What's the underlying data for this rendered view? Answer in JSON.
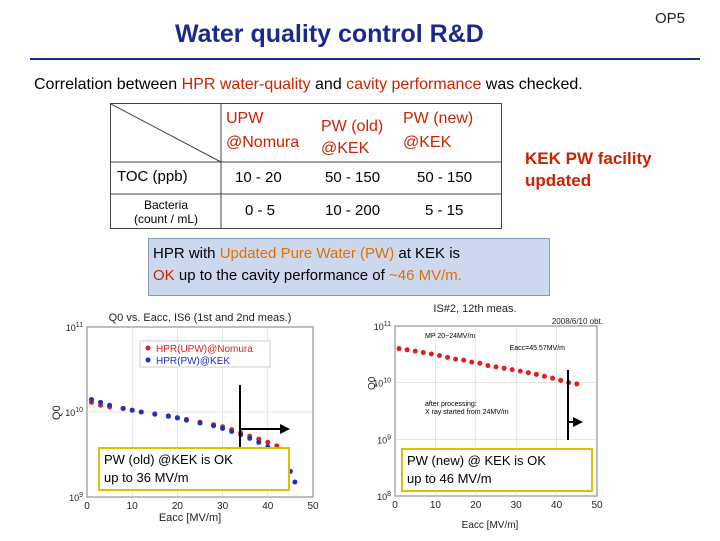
{
  "header": {
    "title": "Water quality control R&D",
    "slide_code": "OP5"
  },
  "subtitle": {
    "pre": "Correlation between ",
    "hl1": "HPR water-quality",
    "mid": " and ",
    "hl2": "cavity performance",
    "post": " was checked."
  },
  "table": {
    "col1": [
      "UPW",
      "@Nomura"
    ],
    "col2": [
      "PW (old)",
      "@KEK"
    ],
    "col3": [
      "PW (new)",
      "@KEK"
    ],
    "row1_label": "TOC (ppb)",
    "row1_vals": [
      "10 - 20",
      "50 - 150",
      "50 - 150"
    ],
    "row2_label": [
      "Bacteria",
      "(count / mL)"
    ],
    "row2_vals": [
      "0 - 5",
      "10 - 200",
      "5 - 15"
    ]
  },
  "facility_note": [
    "KEK PW facility",
    "updated"
  ],
  "banner": {
    "l1a": "HPR with ",
    "l1b": "Updated Pure Water (PW)",
    "l1c": " at KEK is",
    "l2a": "OK",
    "l2b": " up to the cavity performance of ",
    "l2c": "~46 MV/m."
  },
  "left_plot": {
    "title": "Q0 vs. Eacc, IS6 (1st and 2nd meas.)",
    "ylabel": "Q0",
    "xlabel": "Eacc [MV/m]",
    "y_ticks": [
      "10^11",
      "10^10",
      "10^9"
    ],
    "x_ticks": [
      "0",
      "10",
      "20",
      "30",
      "40",
      "50"
    ],
    "legend": [
      "HPR(UPW)@Nomura",
      "HPR(PW)@KEK"
    ],
    "callout": [
      "PW (old) @KEK is OK",
      "up to 36 MV/m"
    ]
  },
  "right_plot": {
    "title": "IS#2, 12th meas.",
    "date": "2008/6/10 obt.",
    "ylabel": "Q0",
    "xlabel": "Eacc [MV/m]",
    "y_ticks": [
      "10^11",
      "10^10",
      "10^9",
      "10^8"
    ],
    "x_ticks": [
      "0",
      "10",
      "20",
      "30",
      "40",
      "50"
    ],
    "notes": [
      "MP 20~24MV/m",
      "Eacc=45.57MV/m",
      "after processing:",
      "X ray started from 24MV/m"
    ],
    "callout": [
      "PW (new) @ KEK is OK",
      "up to 46 MV/m"
    ]
  },
  "colors": {
    "title": "#1a2a8c",
    "highlight": "#cc2200",
    "orange": "#e07000",
    "series_upw": "#e02020",
    "series_pw": "#2030c0"
  },
  "chart_data": [
    {
      "type": "scatter",
      "title": "Q0 vs. Eacc, IS6 (1st and 2nd meas.)",
      "xlabel": "Eacc [MV/m]",
      "ylabel": "Q0",
      "xlim": [
        0,
        50
      ],
      "ylim_log10": [
        9,
        11
      ],
      "series": [
        {
          "name": "HPR(UPW)@Nomura",
          "color": "#e02020",
          "x": [
            1,
            3,
            5,
            8,
            10,
            12,
            15,
            18,
            20,
            22,
            25,
            28,
            30,
            32,
            34,
            36,
            38,
            40,
            42,
            44
          ],
          "y": [
            13000000000.0,
            12000000000.0,
            11500000000.0,
            11000000000.0,
            10500000000.0,
            10000000000.0,
            9500000000.0,
            9000000000.0,
            8600000000.0,
            8200000000.0,
            7600000000.0,
            7100000000.0,
            6700000000.0,
            6200000000.0,
            5700000000.0,
            5200000000.0,
            4800000000.0,
            4400000000.0,
            4000000000.0,
            3600000000.0
          ]
        },
        {
          "name": "HPR(PW)@KEK",
          "color": "#2030c0",
          "x": [
            1,
            3,
            5,
            8,
            10,
            12,
            15,
            18,
            20,
            22,
            25,
            28,
            30,
            32,
            34,
            36,
            38,
            40,
            42,
            44,
            45,
            46
          ],
          "y": [
            14000000000.0,
            13000000000.0,
            12000000000.0,
            11000000000.0,
            10500000000.0,
            10000000000.0,
            9400000000.0,
            8900000000.0,
            8500000000.0,
            8000000000.0,
            7400000000.0,
            6900000000.0,
            6400000000.0,
            5900000000.0,
            5400000000.0,
            4900000000.0,
            4400000000.0,
            3900000000.0,
            3300000000.0,
            2600000000.0,
            2000000000.0,
            1500000000.0
          ]
        }
      ]
    },
    {
      "type": "scatter",
      "title": "IS#2, 12th meas.",
      "xlabel": "Eacc [MV/m]",
      "ylabel": "Q0",
      "xlim": [
        0,
        50
      ],
      "ylim_log10": [
        8,
        11
      ],
      "series": [
        {
          "name": "",
          "color": "#e02020",
          "x": [
            1,
            3,
            5,
            7,
            9,
            11,
            13,
            15,
            17,
            19,
            21,
            23,
            25,
            27,
            29,
            31,
            33,
            35,
            37,
            39,
            41,
            43,
            45
          ],
          "y": [
            40000000000.0,
            38000000000.0,
            36000000000.0,
            34000000000.0,
            32000000000.0,
            30000000000.0,
            28000000000.0,
            26000000000.0,
            25000000000.0,
            23000000000.0,
            22000000000.0,
            20000000000.0,
            19000000000.0,
            18000000000.0,
            17000000000.0,
            16000000000.0,
            15000000000.0,
            14000000000.0,
            13000000000.0,
            12000000000.0,
            11000000000.0,
            10000000000.0,
            9500000000.0
          ]
        }
      ]
    }
  ]
}
